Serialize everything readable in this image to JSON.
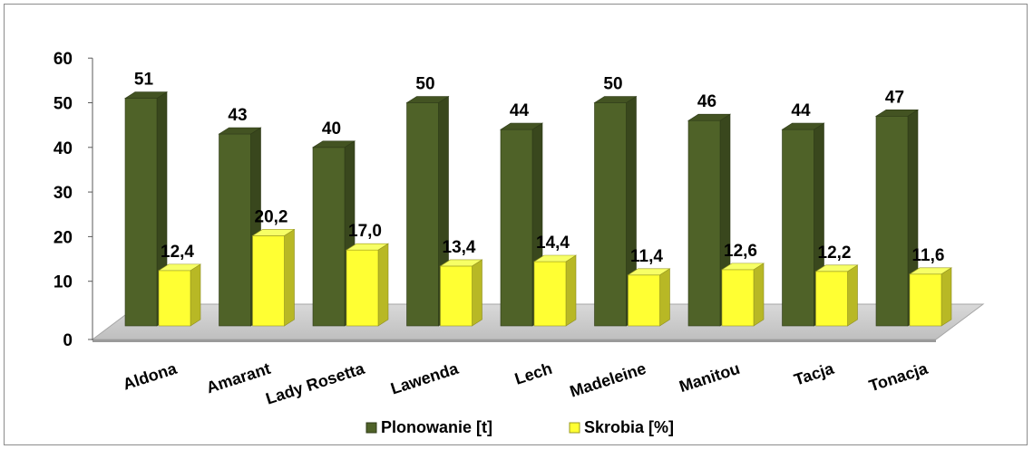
{
  "chart_data": {
    "type": "bar",
    "style": "3d-clustered-column",
    "categories": [
      "Aldona",
      "Amarant",
      "Lady Rosetta",
      "Lawenda",
      "Lech",
      "Madeleine",
      "Manitou",
      "Tacja",
      "Tonacja"
    ],
    "series": [
      {
        "name": "Plonowanie [t]",
        "values": [
          51,
          43,
          40,
          50,
          44,
          50,
          46,
          44,
          47
        ],
        "labels": [
          "51",
          "43",
          "40",
          "50",
          "44",
          "50",
          "46",
          "44",
          "47"
        ],
        "color": "#4f6228"
      },
      {
        "name": "Skrobia [%]",
        "values": [
          12.4,
          20.2,
          17.0,
          13.4,
          14.4,
          11.4,
          12.6,
          12.2,
          11.6
        ],
        "labels": [
          "12,4",
          "20,2",
          "17,0",
          "13,4",
          "14,4",
          "11,4",
          "12,6",
          "12,2",
          "11,6"
        ],
        "color": "#ffff33"
      }
    ],
    "ylim": [
      0,
      60
    ],
    "yticks": [
      "0",
      "10",
      "20",
      "30",
      "40",
      "50",
      "60"
    ],
    "grid": false,
    "legend": "bottom-center"
  }
}
